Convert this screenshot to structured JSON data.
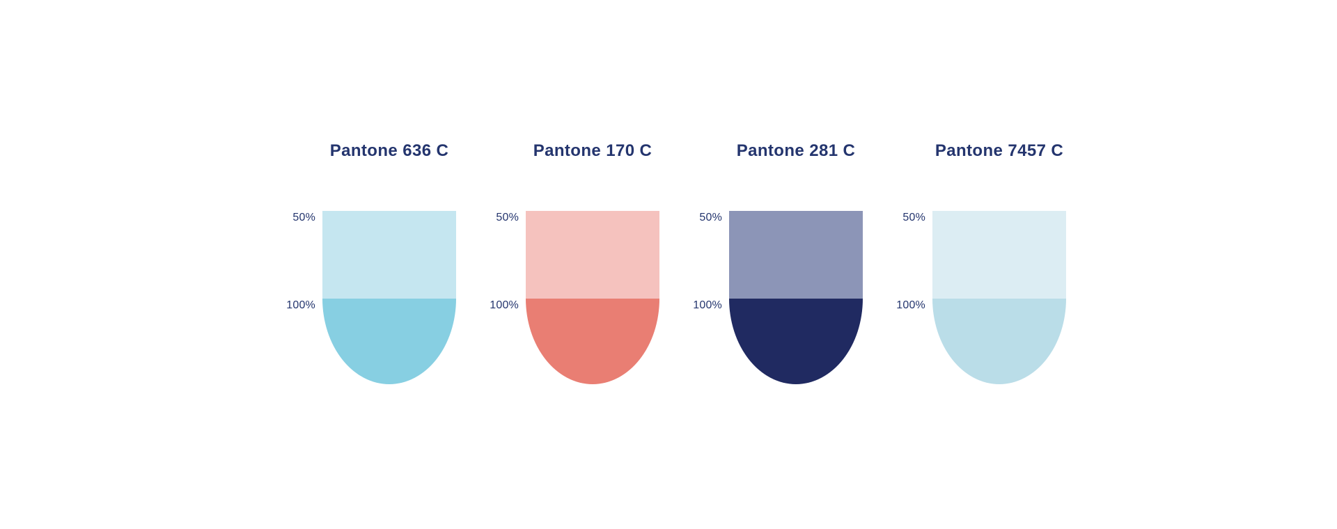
{
  "page": {
    "background": "#ffffff",
    "text_color": "#24356e"
  },
  "swatches": [
    {
      "name": "Pantone 636 C",
      "tint_label": "50%",
      "full_label": "100%",
      "tint_color": "#c5e6f0",
      "full_color": "#87cfe2"
    },
    {
      "name": "Pantone 170 C",
      "tint_label": "50%",
      "full_label": "100%",
      "tint_color": "#f5c2be",
      "full_color": "#e97e73"
    },
    {
      "name": "Pantone 281 C",
      "tint_label": "50%",
      "full_label": "100%",
      "tint_color": "#8c95b7",
      "full_color": "#202a61"
    },
    {
      "name": "Pantone 7457 C",
      "tint_label": "50%",
      "full_label": "100%",
      "tint_color": "#dcedf3",
      "full_color": "#badde8"
    }
  ]
}
